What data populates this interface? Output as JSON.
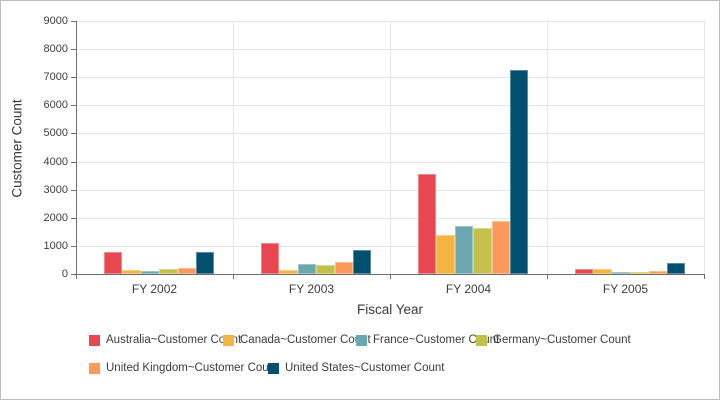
{
  "chart_data": {
    "type": "bar",
    "title": "",
    "xlabel": "Fiscal Year",
    "ylabel": "Customer Count",
    "ylim": [
      0,
      9000
    ],
    "ytick_step": 1000,
    "grid": true,
    "legend_position": "bottom-left",
    "categories": [
      "FY 2002",
      "FY 2003",
      "FY 2004",
      "FY 2005"
    ],
    "series": [
      {
        "name": "Australia~Customer Count",
        "color": "#e8474f",
        "values": [
          790,
          1120,
          3540,
          170
        ]
      },
      {
        "name": "Canada~Customer Count",
        "color": "#f4b440",
        "values": [
          150,
          145,
          1390,
          175
        ]
      },
      {
        "name": "France~Customer Count",
        "color": "#6aa7ae",
        "values": [
          120,
          355,
          1710,
          65
        ]
      },
      {
        "name": "Germany~Customer Count",
        "color": "#c2c24a",
        "values": [
          185,
          320,
          1650,
          70
        ]
      },
      {
        "name": "United Kingdom~Customer Count",
        "color": "#fb9a58",
        "values": [
          205,
          410,
          1870,
          90
        ]
      },
      {
        "name": "United States~Customer Count",
        "color": "#02506f",
        "values": [
          770,
          860,
          7260,
          375
        ]
      }
    ]
  }
}
